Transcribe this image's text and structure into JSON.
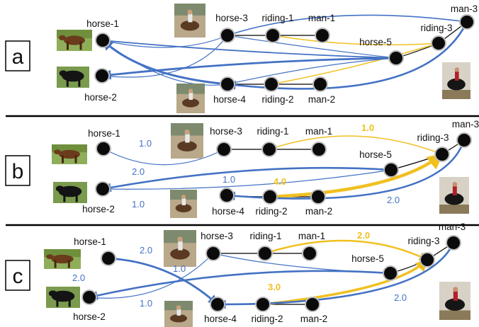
{
  "colors": {
    "blue": "#4472c4",
    "yellow": "#f0c020",
    "node": "#0b0b0b",
    "black": "#000000"
  },
  "panels": [
    {
      "label": "a",
      "nodes": {
        "horse-1": "horse-1",
        "horse-2": "horse-2",
        "horse-3": "horse-3",
        "horse-4": "horse-4",
        "horse-5": "horse-5",
        "riding-1": "riding-1",
        "riding-2": "riding-2",
        "riding-3": "riding-3",
        "man-1": "man-1",
        "man-2": "man-2",
        "man-3": "man-3"
      },
      "weights": []
    },
    {
      "label": "b",
      "nodes": {
        "horse-1": "horse-1",
        "horse-2": "horse-2",
        "horse-3": "horse-3",
        "horse-4": "horse-4",
        "horse-5": "horse-5",
        "riding-1": "riding-1",
        "riding-2": "riding-2",
        "riding-3": "riding-3",
        "man-1": "man-1",
        "man-2": "man-2",
        "man-3": "man-3"
      },
      "weights": [
        "1.0",
        "1.0",
        "2.0",
        "1.0",
        "1.0",
        "4.0",
        "2.0"
      ]
    },
    {
      "label": "c",
      "nodes": {
        "horse-1": "horse-1",
        "horse-2": "horse-2",
        "horse-3": "horse-3",
        "horse-4": "horse-4",
        "horse-5": "horse-5",
        "riding-1": "riding-1",
        "riding-2": "riding-2",
        "riding-3": "riding-3",
        "man-1": "man-1",
        "man-2": "man-2",
        "man-3": "man-3"
      },
      "weights": [
        "2.0",
        "2.0",
        "1.0",
        "2.0",
        "1.0",
        "3.0",
        "2.0"
      ]
    }
  ]
}
